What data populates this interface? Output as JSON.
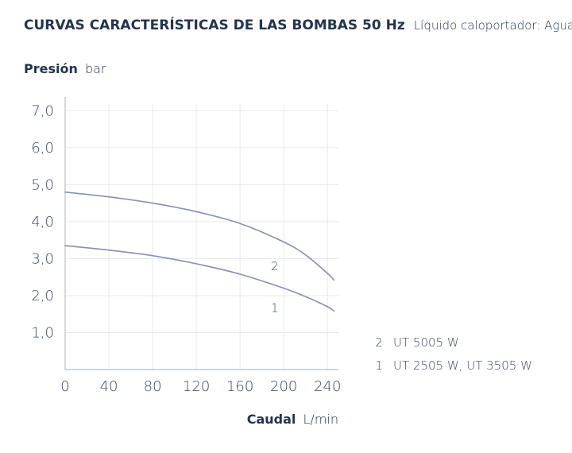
{
  "colors": {
    "grid": "#e6e9ee",
    "axis": "#b8bfcc",
    "curve": "#8890ad",
    "text": "#24344d"
  },
  "header": {
    "title_bold": "CURVAS CARACTERÍSTICAS DE LAS BOMBAS 50 Hz",
    "title_light": "Líquido caloportador: Agua"
  },
  "chart_data": {
    "type": "line",
    "ylabel_bold": "Presión",
    "ylabel_unit": "bar",
    "xlabel_bold": "Caudal",
    "xlabel_unit": "L/min",
    "xlim": [
      0,
      250
    ],
    "ylim": [
      0,
      7.2
    ],
    "x_ticks": [
      0,
      40,
      80,
      120,
      160,
      200,
      240
    ],
    "x_tick_labels": [
      "0",
      "40",
      "80",
      "120",
      "160",
      "200",
      "240"
    ],
    "y_ticks": [
      1,
      2,
      3,
      4,
      5,
      6,
      7
    ],
    "y_tick_labels": [
      "1,0",
      "2,0",
      "3,0",
      "4,0",
      "5,0",
      "6,0",
      "7,0"
    ],
    "grid": true,
    "series": [
      {
        "name": "2",
        "x": [
          0,
          40,
          80,
          120,
          160,
          200,
          220,
          240,
          246
        ],
        "y": [
          4.8,
          4.67,
          4.5,
          4.27,
          3.95,
          3.45,
          3.1,
          2.6,
          2.42
        ]
      },
      {
        "name": "1",
        "x": [
          0,
          40,
          80,
          120,
          160,
          200,
          220,
          240,
          246
        ],
        "y": [
          3.35,
          3.23,
          3.08,
          2.86,
          2.58,
          2.2,
          1.97,
          1.7,
          1.58
        ]
      }
    ],
    "legend": [
      {
        "number": "2",
        "label": "UT 5005 W"
      },
      {
        "number": "1",
        "label": "UT 2505 W, UT 3505 W"
      }
    ]
  }
}
